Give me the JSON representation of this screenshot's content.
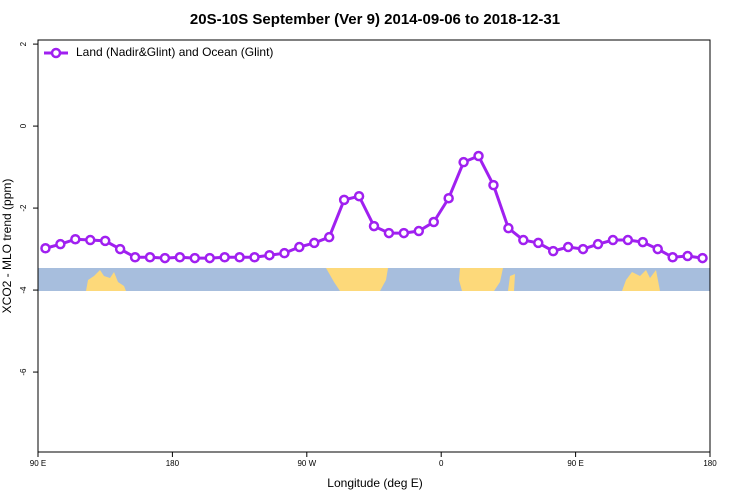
{
  "chart_data": {
    "type": "line",
    "title": "20S-10S September (Ver 9)   2014-09-06 to 2018-12-31",
    "x_label": "Longitude (deg E)",
    "y_label": "XCO2 - MLO trend (ppm)",
    "x": [
      95,
      105,
      115,
      125,
      135,
      145,
      155,
      165,
      175,
      185,
      195,
      205,
      215,
      225,
      235,
      245,
      255,
      265,
      275,
      285,
      295,
      305,
      315,
      325,
      335,
      345,
      355,
      365,
      375,
      385,
      395,
      405,
      415,
      425,
      435,
      445,
      455,
      465,
      475,
      485,
      495,
      505,
      515,
      525,
      535
    ],
    "series": [
      {
        "name": "Land (Nadir&Glint) and Ocean (Glint)",
        "color": "#a020f0",
        "values": [
          -2.98,
          -2.88,
          -2.76,
          -2.78,
          -2.8,
          -3.0,
          -3.2,
          -3.2,
          -3.22,
          -3.2,
          -3.22,
          -3.22,
          -3.2,
          -3.2,
          -3.2,
          -3.15,
          -3.1,
          -2.95,
          -2.85,
          -2.71,
          -1.8,
          -1.71,
          -2.44,
          -2.61,
          -2.61,
          -2.56,
          -2.34,
          -1.76,
          -0.88,
          -0.73,
          -1.44,
          -2.49,
          -2.78,
          -2.85,
          -3.05,
          -2.95,
          -3.0,
          -2.88,
          -2.78,
          -2.78,
          -2.83,
          -3.0,
          -3.2,
          -3.17,
          -3.22
        ]
      }
    ],
    "xlim": [
      90,
      540
    ],
    "xticks": [
      {
        "value": 90,
        "label": "90 E"
      },
      180,
      {
        "value": 270,
        "label": "90 W"
      },
      {
        "value": 360,
        "label": "0"
      },
      {
        "value": 450,
        "label": "90 E"
      },
      {
        "value": 540,
        "label": "180"
      }
    ],
    "ylim": [
      -7.95,
      2.1
    ],
    "yticks": [
      2,
      0,
      -2,
      -4,
      -6
    ],
    "legend": "top-left"
  }
}
